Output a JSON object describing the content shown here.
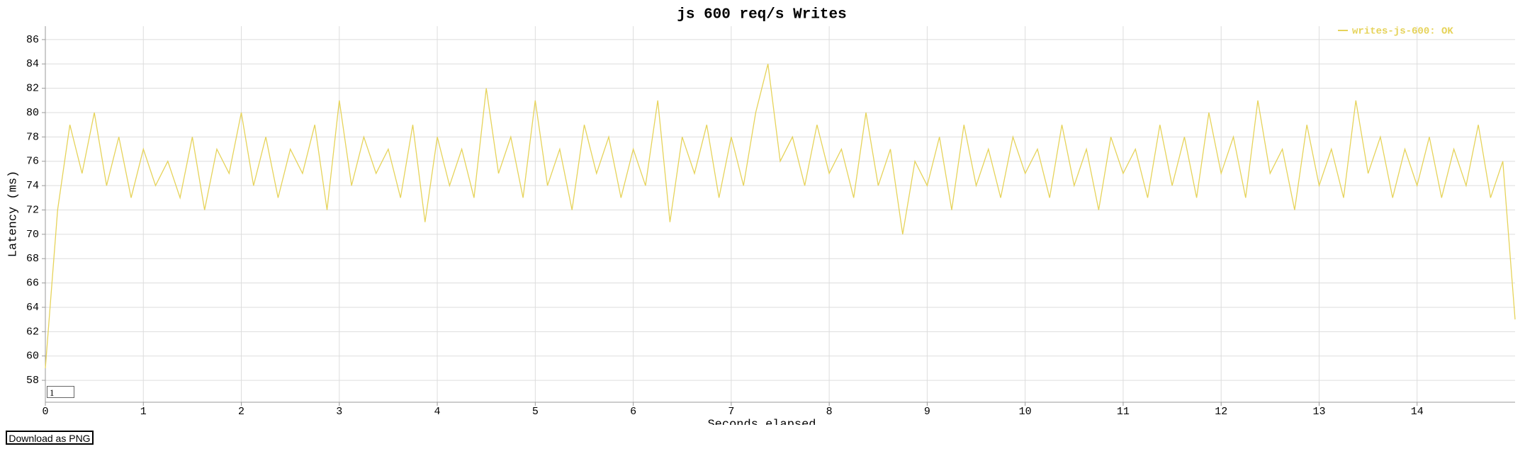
{
  "chart_data": {
    "type": "line",
    "title": "js 600 req/s Writes",
    "x_label": "Seconds elapsed",
    "y_label": "Latency (ms)",
    "xlim": [
      0,
      15
    ],
    "xticks": [
      0,
      1,
      2,
      3,
      4,
      5,
      6,
      7,
      8,
      9,
      10,
      11,
      12,
      13,
      14
    ],
    "ylim": [
      56.2,
      87.1
    ],
    "yticks": [
      58,
      60,
      62,
      64,
      66,
      68,
      70,
      72,
      74,
      76,
      78,
      80,
      82,
      84,
      86
    ],
    "grid": true,
    "legend": "top-right",
    "x": [
      0,
      0.125,
      0.25,
      0.375,
      0.5,
      0.625,
      0.75,
      0.875,
      1,
      1.125,
      1.25,
      1.375,
      1.5,
      1.625,
      1.75,
      1.875,
      2,
      2.125,
      2.25,
      2.375,
      2.5,
      2.625,
      2.75,
      2.875,
      3,
      3.125,
      3.25,
      3.375,
      3.5,
      3.625,
      3.75,
      3.875,
      4,
      4.125,
      4.25,
      4.375,
      4.5,
      4.625,
      4.75,
      4.875,
      5,
      5.125,
      5.25,
      5.375,
      5.5,
      5.625,
      5.75,
      5.875,
      6,
      6.125,
      6.25,
      6.375,
      6.5,
      6.625,
      6.75,
      6.875,
      7,
      7.125,
      7.25,
      7.375,
      7.5,
      7.625,
      7.75,
      7.875,
      8,
      8.125,
      8.25,
      8.375,
      8.5,
      8.625,
      8.75,
      8.875,
      9,
      9.125,
      9.25,
      9.375,
      9.5,
      9.625,
      9.75,
      9.875,
      10,
      10.125,
      10.25,
      10.375,
      10.5,
      10.625,
      10.75,
      10.875,
      11,
      11.125,
      11.25,
      11.375,
      11.5,
      11.625,
      11.75,
      11.875,
      12,
      12.125,
      12.25,
      12.375,
      12.5,
      12.625,
      12.75,
      12.875,
      13,
      13.125,
      13.25,
      13.375,
      13.5,
      13.625,
      13.75,
      13.875,
      14,
      14.125,
      14.25,
      14.375,
      14.5,
      14.625,
      14.75,
      14.875,
      15
    ],
    "series": [
      {
        "name": "writes-js-600: OK",
        "color": "#e6d35a",
        "values": [
          59,
          72,
          79,
          75,
          80,
          74,
          78,
          73,
          77,
          74,
          76,
          73,
          78,
          72,
          77,
          75,
          80,
          74,
          78,
          73,
          77,
          75,
          79,
          72,
          81,
          74,
          78,
          75,
          77,
          73,
          79,
          71,
          78,
          74,
          77,
          73,
          82,
          75,
          78,
          73,
          81,
          74,
          77,
          72,
          79,
          75,
          78,
          73,
          77,
          74,
          81,
          71,
          78,
          75,
          79,
          73,
          78,
          74,
          80,
          84,
          76,
          78,
          74,
          79,
          75,
          77,
          73,
          80,
          74,
          77,
          70,
          76,
          74,
          78,
          72,
          79,
          74,
          77,
          73,
          78,
          75,
          77,
          73,
          79,
          74,
          77,
          72,
          78,
          75,
          77,
          73,
          79,
          74,
          78,
          73,
          80,
          75,
          78,
          73,
          81,
          75,
          77,
          72,
          79,
          74,
          77,
          73,
          81,
          75,
          78,
          73,
          77,
          74,
          78,
          73,
          77,
          74,
          79,
          73,
          76,
          63
        ]
      }
    ]
  },
  "roll_period": "1",
  "download_button": "Download as PNG"
}
